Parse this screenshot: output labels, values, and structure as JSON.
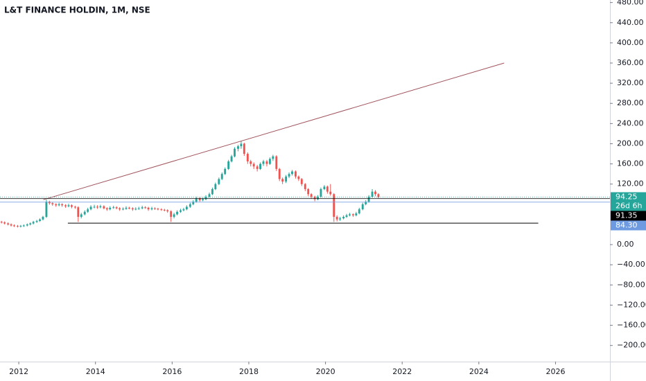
{
  "chart_data": {
    "type": "candlestick",
    "title": "L&T FINANCE HOLDIN, 1M, NSE",
    "up_color": "#26a69a",
    "down_color": "#ef5350",
    "xlim": [
      2011.51,
      2027.42
    ],
    "xticks": [
      2012,
      2014,
      2016,
      2018,
      2020,
      2022,
      2024,
      2026
    ],
    "ylim": [
      -232,
      485
    ],
    "yticks": [
      {
        "value": 480,
        "label": "480.00"
      },
      {
        "value": 440,
        "label": "440.00"
      },
      {
        "value": 400,
        "label": "400.00"
      },
      {
        "value": 360,
        "label": "360.00"
      },
      {
        "value": 320,
        "label": "320.00"
      },
      {
        "value": 280,
        "label": "280.00"
      },
      {
        "value": 240,
        "label": "240.00"
      },
      {
        "value": 200,
        "label": "200.00"
      },
      {
        "value": 160,
        "label": "160.00"
      },
      {
        "value": 120,
        "label": "120.00"
      },
      {
        "value": 0,
        "label": "0.00"
      },
      {
        "value": -40,
        "label": "−40.00"
      },
      {
        "value": -80,
        "label": "−80.00"
      },
      {
        "value": -120,
        "label": "−120.00"
      },
      {
        "value": -160,
        "label": "−160.00"
      },
      {
        "value": -200,
        "label": "−200.00"
      }
    ],
    "x": [
      2011.55,
      2011.63,
      2011.72,
      2011.8,
      2011.88,
      2011.97,
      2012.05,
      2012.13,
      2012.22,
      2012.3,
      2012.38,
      2012.47,
      2012.55,
      2012.63,
      2012.72,
      2012.8,
      2012.88,
      2012.97,
      2013.05,
      2013.13,
      2013.22,
      2013.3,
      2013.38,
      2013.47,
      2013.55,
      2013.63,
      2013.72,
      2013.8,
      2013.88,
      2013.97,
      2014.05,
      2014.13,
      2014.22,
      2014.3,
      2014.38,
      2014.47,
      2014.55,
      2014.63,
      2014.72,
      2014.8,
      2014.88,
      2014.97,
      2015.05,
      2015.13,
      2015.22,
      2015.3,
      2015.38,
      2015.47,
      2015.55,
      2015.63,
      2015.72,
      2015.8,
      2015.88,
      2015.97,
      2016.05,
      2016.13,
      2016.22,
      2016.3,
      2016.38,
      2016.47,
      2016.55,
      2016.63,
      2016.72,
      2016.8,
      2016.88,
      2016.97,
      2017.05,
      2017.13,
      2017.22,
      2017.3,
      2017.38,
      2017.47,
      2017.55,
      2017.63,
      2017.72,
      2017.8,
      2017.88,
      2017.97,
      2018.05,
      2018.13,
      2018.22,
      2018.3,
      2018.38,
      2018.47,
      2018.55,
      2018.63,
      2018.72,
      2018.8,
      2018.88,
      2018.97,
      2019.05,
      2019.13,
      2019.22,
      2019.3,
      2019.38,
      2019.47,
      2019.55,
      2019.63,
      2019.72,
      2019.8,
      2019.88,
      2019.97,
      2020.05,
      2020.13,
      2020.22,
      2020.3,
      2020.38,
      2020.47,
      2020.55,
      2020.63,
      2020.72,
      2020.8,
      2020.88,
      2020.97,
      2021.05,
      2021.13,
      2021.22,
      2021.3,
      2021.38
    ],
    "candles": [
      [
        45,
        47,
        42,
        44
      ],
      [
        44,
        46,
        40,
        42
      ],
      [
        42,
        44,
        38,
        40
      ],
      [
        40,
        42,
        36,
        38
      ],
      [
        38,
        40,
        35,
        37
      ],
      [
        37,
        39,
        34,
        36
      ],
      [
        36,
        39,
        34,
        37
      ],
      [
        37,
        40,
        35,
        38
      ],
      [
        38,
        42,
        36,
        40
      ],
      [
        40,
        44,
        38,
        42
      ],
      [
        42,
        47,
        40,
        45
      ],
      [
        45,
        49,
        43,
        47
      ],
      [
        47,
        52,
        45,
        50
      ],
      [
        50,
        57,
        48,
        55
      ],
      [
        55,
        89,
        53,
        85
      ],
      [
        85,
        87,
        79,
        82
      ],
      [
        82,
        84,
        77,
        80
      ],
      [
        80,
        82,
        75,
        78
      ],
      [
        78,
        83,
        76,
        80
      ],
      [
        80,
        82,
        75,
        78
      ],
      [
        78,
        80,
        73,
        76
      ],
      [
        76,
        81,
        74,
        78
      ],
      [
        78,
        80,
        72,
        75
      ],
      [
        75,
        77,
        71,
        74
      ],
      [
        74,
        76,
        45,
        55
      ],
      [
        55,
        63,
        52,
        60
      ],
      [
        60,
        68,
        58,
        65
      ],
      [
        65,
        73,
        63,
        70
      ],
      [
        70,
        78,
        68,
        75
      ],
      [
        75,
        79,
        72,
        75
      ],
      [
        75,
        78,
        71,
        74
      ],
      [
        74,
        79,
        72,
        76
      ],
      [
        76,
        78,
        70,
        72
      ],
      [
        72,
        74,
        67,
        70
      ],
      [
        70,
        76,
        68,
        73
      ],
      [
        73,
        77,
        71,
        74
      ],
      [
        74,
        76,
        70,
        72
      ],
      [
        72,
        74,
        67,
        70
      ],
      [
        70,
        74,
        68,
        71
      ],
      [
        71,
        76,
        69,
        73
      ],
      [
        73,
        75,
        70,
        72
      ],
      [
        72,
        74,
        67,
        70
      ],
      [
        70,
        74,
        68,
        71
      ],
      [
        71,
        75,
        69,
        72
      ],
      [
        72,
        77,
        70,
        74
      ],
      [
        74,
        76,
        71,
        73
      ],
      [
        73,
        75,
        67,
        70
      ],
      [
        70,
        75,
        68,
        72
      ],
      [
        72,
        74,
        69,
        71
      ],
      [
        71,
        73,
        68,
        70
      ],
      [
        70,
        72,
        67,
        69
      ],
      [
        69,
        71,
        66,
        68
      ],
      [
        68,
        70,
        63,
        66
      ],
      [
        66,
        68,
        45,
        55
      ],
      [
        55,
        63,
        52,
        60
      ],
      [
        60,
        68,
        58,
        65
      ],
      [
        65,
        71,
        63,
        68
      ],
      [
        68,
        73,
        66,
        70
      ],
      [
        70,
        78,
        68,
        75
      ],
      [
        75,
        83,
        73,
        80
      ],
      [
        80,
        88,
        78,
        85
      ],
      [
        85,
        95,
        83,
        92
      ],
      [
        92,
        94,
        85,
        88
      ],
      [
        88,
        93,
        86,
        90
      ],
      [
        90,
        98,
        88,
        95
      ],
      [
        95,
        103,
        93,
        100
      ],
      [
        100,
        113,
        98,
        110
      ],
      [
        110,
        123,
        108,
        120
      ],
      [
        120,
        133,
        118,
        130
      ],
      [
        130,
        143,
        128,
        140
      ],
      [
        140,
        153,
        138,
        150
      ],
      [
        150,
        168,
        148,
        165
      ],
      [
        165,
        178,
        163,
        175
      ],
      [
        175,
        193,
        173,
        190
      ],
      [
        190,
        198,
        185,
        195
      ],
      [
        195,
        205,
        190,
        200
      ],
      [
        200,
        202,
        176,
        180
      ],
      [
        180,
        183,
        160,
        165
      ],
      [
        165,
        168,
        155,
        160
      ],
      [
        160,
        163,
        150,
        155
      ],
      [
        155,
        158,
        145,
        150
      ],
      [
        150,
        163,
        148,
        160
      ],
      [
        160,
        168,
        156,
        165
      ],
      [
        165,
        168,
        155,
        160
      ],
      [
        160,
        173,
        158,
        170
      ],
      [
        170,
        178,
        166,
        175
      ],
      [
        175,
        177,
        146,
        150
      ],
      [
        150,
        152,
        126,
        130
      ],
      [
        130,
        133,
        120,
        125
      ],
      [
        125,
        138,
        122,
        135
      ],
      [
        135,
        143,
        132,
        140
      ],
      [
        140,
        148,
        137,
        145
      ],
      [
        145,
        147,
        131,
        135
      ],
      [
        135,
        137,
        126,
        130
      ],
      [
        130,
        132,
        116,
        120
      ],
      [
        120,
        122,
        106,
        110
      ],
      [
        110,
        112,
        96,
        100
      ],
      [
        100,
        102,
        91,
        95
      ],
      [
        95,
        97,
        86,
        90
      ],
      [
        90,
        98,
        88,
        95
      ],
      [
        95,
        113,
        93,
        110
      ],
      [
        110,
        118,
        108,
        115
      ],
      [
        115,
        117,
        101,
        105
      ],
      [
        105,
        120,
        97,
        100
      ],
      [
        100,
        102,
        45,
        55
      ],
      [
        55,
        58,
        46,
        50
      ],
      [
        50,
        55,
        47,
        52
      ],
      [
        52,
        58,
        50,
        55
      ],
      [
        55,
        61,
        53,
        58
      ],
      [
        58,
        63,
        56,
        60
      ],
      [
        60,
        62,
        55,
        58
      ],
      [
        58,
        65,
        56,
        62
      ],
      [
        62,
        73,
        60,
        70
      ],
      [
        70,
        83,
        68,
        80
      ],
      [
        80,
        88,
        78,
        85
      ],
      [
        85,
        98,
        83,
        95
      ],
      [
        95,
        110,
        93,
        105
      ],
      [
        105,
        108,
        96,
        100
      ],
      [
        100,
        102,
        92,
        94.25
      ]
    ],
    "price_lines": [
      {
        "value": 94.25,
        "color": "#26a69a",
        "sub": "26d 6h"
      },
      {
        "value": 91.35,
        "color": "#000000"
      },
      {
        "value": 84.3,
        "label": "84.30",
        "color": "#6d9ae0"
      }
    ],
    "drawings": [
      {
        "x": [
          2012.64,
          2024.66
        ],
        "y": [
          89,
          360
        ],
        "color": "#a0525a"
      },
      {
        "x": [
          2013.28,
          2025.55
        ],
        "y": [
          42.6,
          42.6
        ],
        "color": "#000000"
      }
    ]
  }
}
